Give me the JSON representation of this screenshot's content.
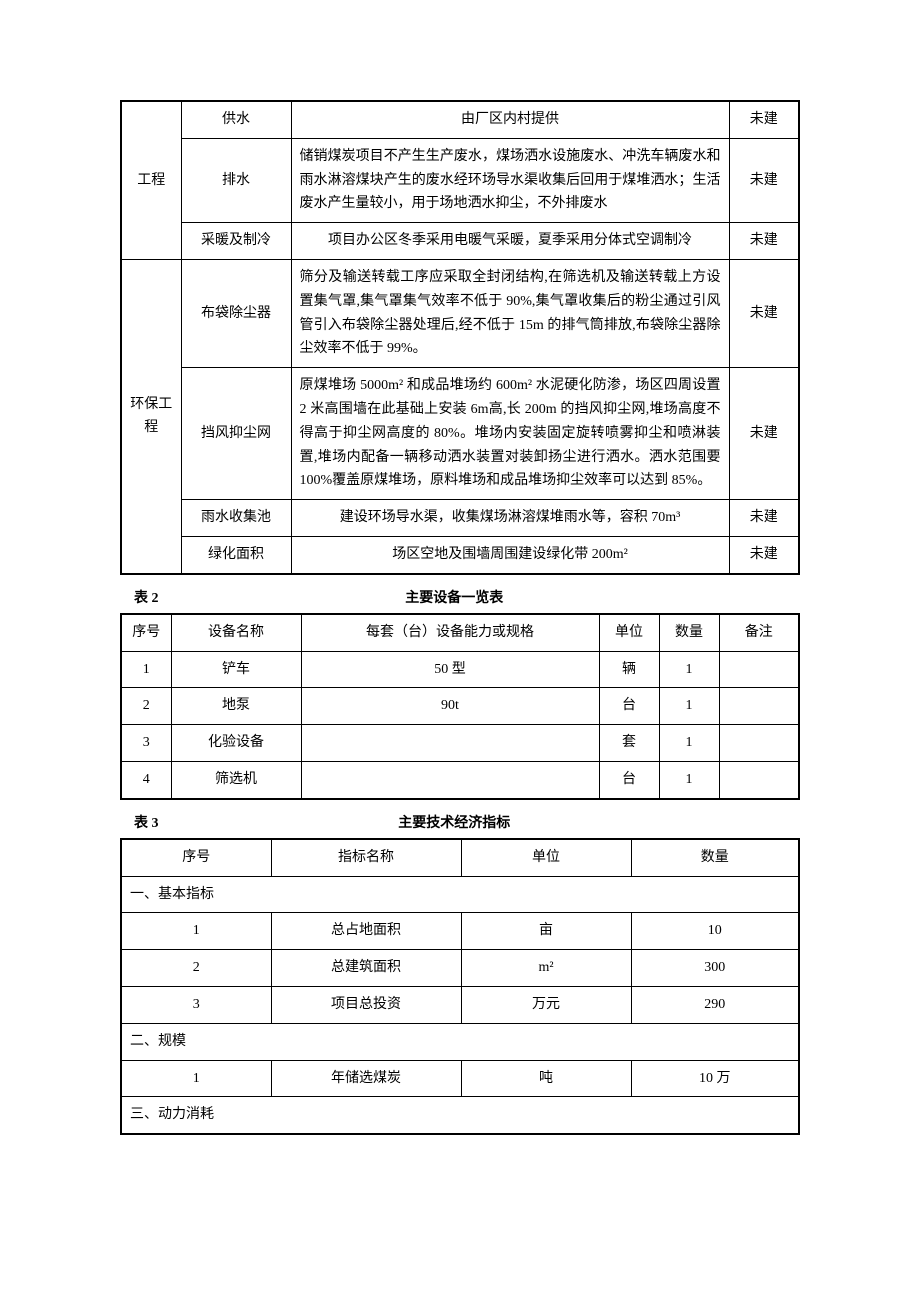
{
  "table1": {
    "groups": [
      {
        "label": "工程",
        "rows": [
          {
            "item": "供水",
            "desc": "由厂区内村提供",
            "status": "未建"
          },
          {
            "item": "排水",
            "desc": "储销煤炭项目不产生生产废水，煤场洒水设施废水、冲洗车辆废水和雨水淋溶煤块产生的废水经环场导水渠收集后回用于煤堆洒水；生活废水产生量较小，用于场地洒水抑尘，不外排废水",
            "status": "未建"
          },
          {
            "item": "采暖及制冷",
            "desc": "项目办公区冬季采用电暖气采暖，夏季采用分体式空调制冷",
            "status": "未建"
          }
        ]
      },
      {
        "label": "环保工程",
        "rows": [
          {
            "item": "布袋除尘器",
            "desc": "筛分及输送转载工序应采取全封闭结构,在筛选机及输送转载上方设置集气罩,集气罩集气效率不低于 90%,集气罩收集后的粉尘通过引风管引入布袋除尘器处理后,经不低于 15m 的排气筒排放,布袋除尘器除尘效率不低于 99%。",
            "status": "未建"
          },
          {
            "item": "挡风抑尘网",
            "desc": "原煤堆场 5000m² 和成品堆场约 600m² 水泥硬化防渗，场区四周设置 2 米高围墙在此基础上安装 6m高,长 200m 的挡风抑尘网,堆场高度不得高于抑尘网高度的 80%。堆场内安装固定旋转喷雾抑尘和喷淋装置,堆场内配备一辆移动洒水装置对装卸扬尘进行洒水。洒水范围要 100%覆盖原煤堆场，原料堆场和成品堆场抑尘效率可以达到 85%。",
            "status": "未建"
          },
          {
            "item": "雨水收集池",
            "desc": "建设环场导水渠，收集煤场淋溶煤堆雨水等，容积 70m³",
            "status": "未建"
          },
          {
            "item": "绿化面积",
            "desc": "场区空地及围墙周围建设绿化带 200m²",
            "status": "未建"
          }
        ]
      }
    ]
  },
  "caption2_label": "表 2",
  "caption2_title": "主要设备一览表",
  "table2": {
    "headers": [
      "序号",
      "设备名称",
      "每套（台）设备能力或规格",
      "单位",
      "数量",
      "备注"
    ],
    "rows": [
      [
        "1",
        "铲车",
        "50 型",
        "辆",
        "1",
        ""
      ],
      [
        "2",
        "地泵",
        "90t",
        "台",
        "1",
        ""
      ],
      [
        "3",
        "化验设备",
        "",
        "套",
        "1",
        ""
      ],
      [
        "4",
        "筛选机",
        "",
        "台",
        "1",
        ""
      ]
    ]
  },
  "caption3_label": "表 3",
  "caption3_title": "主要技术经济指标",
  "table3": {
    "headers": [
      "序号",
      "指标名称",
      "单位",
      "数量"
    ],
    "sections": [
      {
        "title": "一、基本指标",
        "rows": [
          [
            "1",
            "总占地面积",
            "亩",
            "10"
          ],
          [
            "2",
            "总建筑面积",
            "m²",
            "300"
          ],
          [
            "3",
            "项目总投资",
            "万元",
            "290"
          ]
        ]
      },
      {
        "title": "二、规模",
        "rows": [
          [
            "1",
            "年储选煤炭",
            "吨",
            "10 万"
          ]
        ]
      },
      {
        "title": "三、动力消耗",
        "rows": []
      }
    ]
  }
}
